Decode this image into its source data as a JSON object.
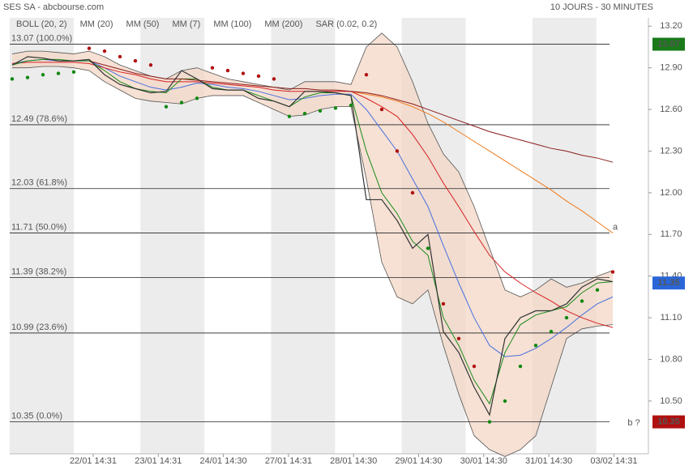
{
  "chart_data": {
    "type": "stock",
    "title": "SES SA - abcbourse.com",
    "subtitle": "10 JOURS - 30 MINUTES",
    "xticks": [
      "22/01 14:31",
      "23/01 14:31",
      "24/01 14:30",
      "27/01 14:31",
      "28/01 14:30",
      "29/01 14:30",
      "30/01 14:30",
      "31/01 14:30",
      "03/02 14:31"
    ],
    "ylim": [
      10.12,
      13.26
    ],
    "yticks": [
      {
        "value": 13.2,
        "label": "13.20"
      },
      {
        "value": 12.9,
        "label": "12.90"
      },
      {
        "value": 12.6,
        "label": "12.60"
      },
      {
        "value": 12.3,
        "label": "12.30"
      },
      {
        "value": 12.0,
        "label": "12.00"
      },
      {
        "value": 11.7,
        "label": "11.70"
      },
      {
        "value": 11.4,
        "label": "11.40"
      },
      {
        "value": 11.1,
        "label": "11.10"
      },
      {
        "value": 10.8,
        "label": "10.80"
      },
      {
        "value": 10.5,
        "label": "10.50"
      }
    ],
    "values": [
      12.92,
      12.98,
      12.97,
      12.95,
      12.95,
      12.96,
      12.85,
      12.78,
      12.75,
      12.72,
      12.73,
      12.88,
      12.82,
      12.75,
      12.74,
      12.74,
      12.68,
      12.66,
      12.62,
      12.73,
      12.73,
      12.72,
      12.7,
      11.95,
      11.95,
      11.8,
      11.6,
      11.7,
      11.0,
      10.85,
      10.6,
      10.4,
      10.95,
      11.1,
      11.15,
      11.15,
      11.2,
      11.32,
      11.38,
      11.36
    ],
    "price_color": "#333333",
    "bollinger": {
      "name": "BOLL (20, 2)",
      "color": "#555555",
      "fill": "#f3d7c6",
      "upper": [
        13.0,
        13.02,
        13.02,
        13.01,
        13.0,
        13.02,
        12.98,
        12.92,
        12.88,
        12.84,
        12.82,
        12.88,
        12.9,
        12.86,
        12.82,
        12.8,
        12.78,
        12.76,
        12.74,
        12.8,
        12.8,
        12.8,
        12.78,
        13.05,
        13.15,
        13.05,
        12.8,
        12.5,
        12.28,
        12.15,
        11.9,
        11.6,
        11.3,
        11.25,
        11.3,
        11.38,
        11.32,
        11.35,
        11.4,
        11.44
      ],
      "lower": [
        12.9,
        12.9,
        12.91,
        12.91,
        12.9,
        12.88,
        12.8,
        12.74,
        12.68,
        12.66,
        12.65,
        12.64,
        12.68,
        12.7,
        12.7,
        12.7,
        12.65,
        12.6,
        12.55,
        12.56,
        12.6,
        12.62,
        12.62,
        12.1,
        11.5,
        11.25,
        11.2,
        11.3,
        10.9,
        10.55,
        10.25,
        10.15,
        10.1,
        10.15,
        10.25,
        10.6,
        10.95,
        11.02,
        11.04,
        11.05
      ]
    },
    "series": [
      {
        "name": "MM (20)",
        "color": "#4a6fe0",
        "values": [
          12.93,
          12.95,
          12.96,
          12.95,
          12.95,
          12.95,
          12.9,
          12.84,
          12.8,
          12.76,
          12.74,
          12.76,
          12.79,
          12.78,
          12.76,
          12.75,
          12.73,
          12.7,
          12.67,
          12.68,
          12.7,
          12.71,
          12.71,
          12.6,
          12.45,
          12.3,
          12.1,
          11.9,
          11.62,
          11.35,
          11.1,
          10.9,
          10.82,
          10.83,
          10.88,
          10.95,
          11.03,
          11.12,
          11.2,
          11.25
        ]
      },
      {
        "name": "MM (50)",
        "color": "#d62020",
        "values": [
          12.93,
          12.94,
          12.94,
          12.94,
          12.94,
          12.93,
          12.9,
          12.87,
          12.85,
          12.82,
          12.8,
          12.8,
          12.8,
          12.79,
          12.78,
          12.77,
          12.76,
          12.74,
          12.73,
          12.73,
          12.73,
          12.73,
          12.73,
          12.68,
          12.62,
          12.55,
          12.42,
          12.26,
          12.07,
          11.9,
          11.72,
          11.55,
          11.43,
          11.35,
          11.28,
          11.22,
          11.15,
          11.1,
          11.06,
          11.03
        ]
      },
      {
        "name": "MM (7)",
        "color": "#1a8a1a",
        "values": [
          12.92,
          12.95,
          12.96,
          12.96,
          12.95,
          12.95,
          12.88,
          12.8,
          12.75,
          12.73,
          12.72,
          12.82,
          12.82,
          12.76,
          12.74,
          12.74,
          12.7,
          12.66,
          12.62,
          12.69,
          12.72,
          12.72,
          12.7,
          12.3,
          12.0,
          11.85,
          11.65,
          11.55,
          11.1,
          10.9,
          10.65,
          10.48,
          10.85,
          11.05,
          11.12,
          11.15,
          11.18,
          11.28,
          11.35,
          11.36
        ]
      },
      {
        "name": "MM (100)",
        "color": "#f07a1a",
        "values": [
          null,
          null,
          null,
          null,
          null,
          null,
          null,
          null,
          null,
          null,
          null,
          null,
          null,
          null,
          null,
          null,
          null,
          null,
          null,
          null,
          null,
          null,
          12.73,
          12.71,
          12.69,
          12.66,
          12.62,
          12.57,
          12.51,
          12.44,
          12.37,
          12.3,
          12.23,
          12.16,
          12.09,
          12.02,
          11.94,
          11.87,
          11.79,
          11.71
        ]
      },
      {
        "name": "MM (200)",
        "color": "#8b1a1a",
        "values": [
          null,
          null,
          null,
          null,
          null,
          12.95,
          12.92,
          12.89,
          12.86,
          12.84,
          12.82,
          12.82,
          12.81,
          12.8,
          12.79,
          12.78,
          12.77,
          12.76,
          12.75,
          12.75,
          12.74,
          12.74,
          12.73,
          12.72,
          12.7,
          12.67,
          12.64,
          12.6,
          12.56,
          12.52,
          12.48,
          12.44,
          12.41,
          12.38,
          12.35,
          12.32,
          12.3,
          12.27,
          12.25,
          12.22
        ]
      }
    ],
    "sar": {
      "name": "SAR (0.02, 0.2)",
      "color": "#b01010",
      "color_up": "#118811",
      "values": [
        12.82,
        12.83,
        12.85,
        12.86,
        12.87,
        13.04,
        13.02,
        12.98,
        12.95,
        12.92,
        12.62,
        12.65,
        12.68,
        12.9,
        12.88,
        12.86,
        12.84,
        12.82,
        12.55,
        12.57,
        12.59,
        12.61,
        12.63,
        12.85,
        12.6,
        12.3,
        12.0,
        11.6,
        11.2,
        10.95,
        10.75,
        10.35,
        10.5,
        10.75,
        10.9,
        11.0,
        11.1,
        11.22,
        11.3,
        11.43
      ]
    },
    "levels": [
      {
        "value": 13.07,
        "label": "13.07 (100.0%)"
      },
      {
        "value": 12.49,
        "label": "12.49 (78.6%)"
      },
      {
        "value": 12.03,
        "label": "12.03 (61.8%)"
      },
      {
        "value": 11.71,
        "label": "11.71 (50.0%)"
      },
      {
        "value": 11.39,
        "label": "11.39 (38.2%)"
      },
      {
        "value": 10.99,
        "label": "10.99 (23.6%)"
      },
      {
        "value": 10.35,
        "label": "10.35 (0.0%)"
      }
    ],
    "price_tags": [
      {
        "value": 13.07,
        "color": "#1a7a1a"
      },
      {
        "value": 11.35,
        "color": "#2a66d8"
      },
      {
        "value": 10.35,
        "color": "#b01010"
      }
    ],
    "annotations": [
      {
        "text": "a",
        "value": 11.75
      },
      {
        "text": "b ?",
        "value": 10.34
      }
    ]
  }
}
